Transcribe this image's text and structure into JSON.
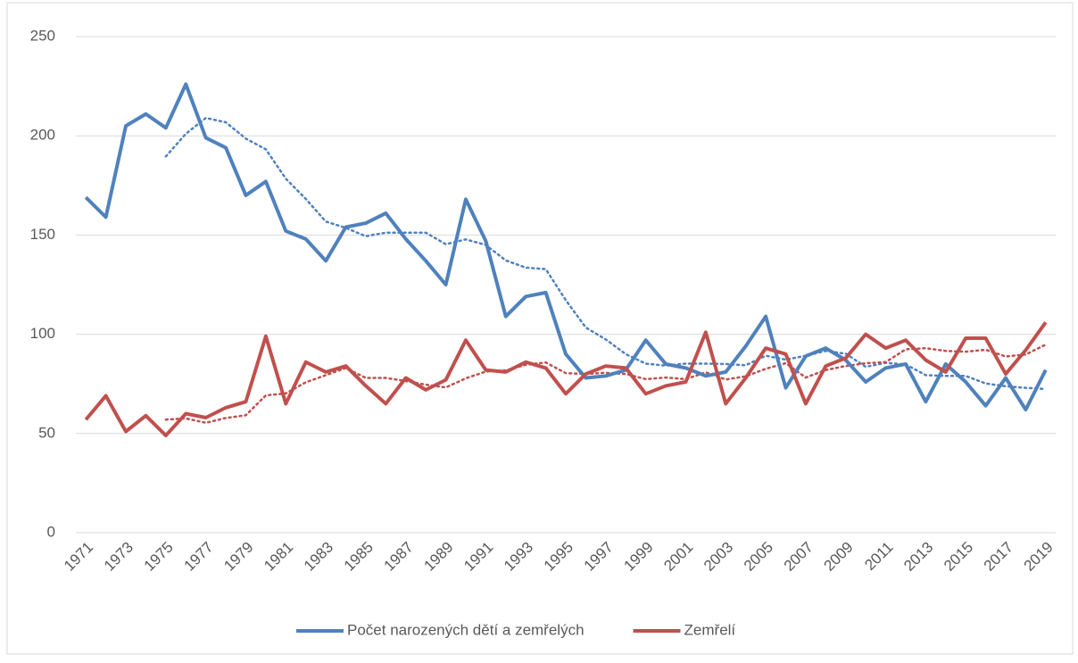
{
  "chart_data": {
    "type": "line",
    "categories": [
      "1971",
      null,
      "1973",
      null,
      "1975",
      null,
      "1977",
      null,
      "1979",
      null,
      "1981",
      null,
      "1983",
      null,
      "1985",
      null,
      "1987",
      null,
      "1989",
      null,
      "1991",
      null,
      "1993",
      null,
      "1995",
      null,
      "1997",
      null,
      "1999",
      null,
      "2001",
      null,
      "2003",
      null,
      "2005",
      null,
      "2007",
      null,
      "2009",
      null,
      "2011",
      null,
      "2013",
      null,
      "2015",
      null,
      "2017",
      null,
      "2019"
    ],
    "series": [
      {
        "name": "Počet narozených dětí a zemřelých",
        "color": "#4f81bd",
        "values": [
          169,
          159,
          205,
          211,
          204,
          226,
          199,
          194,
          170,
          177,
          152,
          148,
          137,
          154,
          156,
          161,
          148,
          137,
          125,
          168,
          147,
          109,
          119,
          121,
          90,
          78,
          79,
          82,
          97,
          85,
          83,
          79,
          81,
          94,
          109,
          73,
          89,
          93,
          87,
          76,
          83,
          85,
          66,
          85,
          76,
          64,
          78,
          62,
          82
        ],
        "trendline": {
          "type": "moving_average",
          "period": 5
        }
      },
      {
        "name": "Zemřelí",
        "color": "#c0504d",
        "values": [
          57,
          69,
          51,
          59,
          49,
          60,
          58,
          63,
          66,
          99,
          65,
          86,
          81,
          84,
          74,
          65,
          78,
          72,
          77,
          97,
          82,
          81,
          86,
          83,
          70,
          80,
          84,
          83,
          70,
          74,
          76,
          101,
          65,
          78,
          93,
          90,
          65,
          84,
          88,
          100,
          93,
          97,
          87,
          81,
          98,
          98,
          80,
          92,
          106
        ],
        "trendline": {
          "type": "moving_average",
          "period": 5
        }
      }
    ],
    "ylim": [
      0,
      250
    ],
    "yticks": [
      0,
      50,
      100,
      150,
      200,
      250
    ],
    "grid": true,
    "legend": "bottom"
  }
}
